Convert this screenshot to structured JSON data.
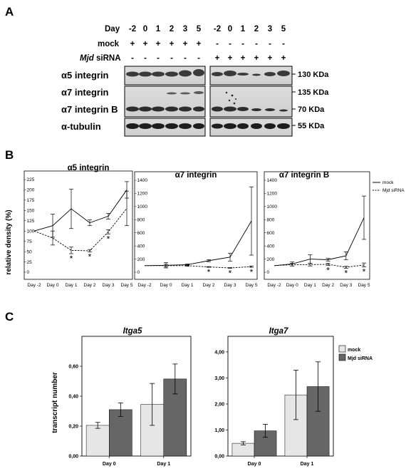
{
  "panels": {
    "a": "A",
    "b": "B",
    "c": "C"
  },
  "panel_a": {
    "day_label": "Day",
    "days": [
      "-2",
      "0",
      "1",
      "2",
      "3",
      "5",
      "-2",
      "0",
      "1",
      "2",
      "3",
      "5"
    ],
    "rows": [
      {
        "label": "mock",
        "marks": [
          "+",
          "+",
          "+",
          "+",
          "+",
          "+",
          "-",
          "-",
          "-",
          "-",
          "-",
          "-"
        ]
      },
      {
        "label_italic": "Mjd",
        "label_rest": " siRNA",
        "marks": [
          "-",
          "-",
          "-",
          "-",
          "-",
          "-",
          "+",
          "+",
          "+",
          "+",
          "+",
          "+"
        ]
      }
    ],
    "blots": [
      {
        "label": "α5 integrin",
        "kda": [
          "130 KDa"
        ]
      },
      {
        "label": "α7 integrin",
        "kda": [
          "135 KDa"
        ]
      },
      {
        "label": "α7 integrin B",
        "kda": [
          "70 KDa"
        ]
      },
      {
        "label": "α-tubulin",
        "kda": [
          "55 KDa"
        ]
      }
    ]
  },
  "panel_b": {
    "ylabel": "relative density (%)",
    "legend": [
      "mock",
      "Mjd siRNA"
    ],
    "charts": [
      {
        "title": "α5 integrin"
      },
      {
        "title": "α7 integrin"
      },
      {
        "title": "α7 integrin B"
      }
    ]
  },
  "panel_c": {
    "ylabel": "transcript number",
    "legend": [
      "mock",
      "Mjd siRNA"
    ],
    "colors": {
      "mock": "#e6e6e6",
      "siRNA": "#666666"
    },
    "charts": [
      {
        "title": "Itga5"
      },
      {
        "title": "Itga7"
      }
    ]
  },
  "chart_data": [
    {
      "type": "line",
      "title": "α5 integrin",
      "ylabel": "relative density (%)",
      "categories": [
        "Day -2",
        "Day 0",
        "Day 1",
        "Day 2",
        "Day 3",
        "Day 5"
      ],
      "ylim": [
        0,
        225
      ],
      "yticks": [
        0,
        25,
        50,
        75,
        100,
        125,
        150,
        175,
        200,
        225
      ],
      "series": [
        {
          "name": "mock",
          "values": [
            100,
            113,
            154,
            120,
            136,
            200
          ],
          "errors": [
            0,
            28,
            48,
            7,
            7,
            20
          ]
        },
        {
          "name": "Mjd siRNA",
          "values": [
            100,
            83,
            53,
            52,
            98,
            155
          ],
          "errors": [
            0,
            17,
            8,
            3,
            5,
            42
          ]
        }
      ],
      "significance": [
        {
          "category": "Day 1",
          "label": "*"
        },
        {
          "category": "Day 2",
          "label": "*"
        },
        {
          "category": "Day 3",
          "label": "*"
        }
      ]
    },
    {
      "type": "line",
      "title": "α7 integrin",
      "categories": [
        "Day -2",
        "Day 0",
        "Day 1",
        "Day 2",
        "Day 3",
        "Day 5"
      ],
      "ylim": [
        0,
        1400
      ],
      "yticks": [
        0,
        200,
        400,
        600,
        800,
        1000,
        1200,
        1400
      ],
      "series": [
        {
          "name": "mock",
          "values": [
            100,
            105,
            115,
            175,
            230,
            780
          ],
          "errors": [
            0,
            40,
            10,
            15,
            60,
            520
          ]
        },
        {
          "name": "Mjd siRNA",
          "values": [
            100,
            100,
            100,
            80,
            65,
            85
          ],
          "errors": [
            0,
            20,
            10,
            5,
            5,
            10
          ]
        }
      ],
      "significance": [
        {
          "category": "Day 2",
          "label": "*"
        },
        {
          "category": "Day 3",
          "label": "*"
        },
        {
          "category": "Day 5",
          "label": "*"
        }
      ]
    },
    {
      "type": "line",
      "title": "α7 integrin B",
      "categories": [
        "Day -2",
        "Day 0",
        "Day 1",
        "Day 2",
        "Day 3",
        "Day 5"
      ],
      "ylim": [
        0,
        1400
      ],
      "yticks": [
        0,
        200,
        400,
        600,
        800,
        1000,
        1200,
        1400
      ],
      "series": [
        {
          "name": "mock",
          "values": [
            100,
            125,
            200,
            190,
            250,
            830
          ],
          "errors": [
            0,
            30,
            65,
            20,
            60,
            330
          ]
        },
        {
          "name": "Mjd siRNA",
          "values": [
            100,
            115,
            115,
            120,
            75,
            110
          ],
          "errors": [
            0,
            20,
            20,
            15,
            15,
            30
          ]
        }
      ],
      "significance": [
        {
          "category": "Day 2",
          "label": "*"
        },
        {
          "category": "Day 3",
          "label": "*"
        },
        {
          "category": "Day 5",
          "label": "*"
        }
      ]
    },
    {
      "type": "bar",
      "title": "Itga5",
      "ylabel": "transcript number",
      "categories": [
        "Day 0",
        "Day 1"
      ],
      "ylim": [
        0,
        0.8
      ],
      "yticks": [
        "0,00",
        "0,20",
        "0,40",
        "0,60"
      ],
      "ytick_values": [
        0,
        0.2,
        0.4,
        0.6
      ],
      "series": [
        {
          "name": "mock",
          "values": [
            0.205,
            0.345
          ],
          "errors": [
            0.02,
            0.14
          ]
        },
        {
          "name": "Mjd siRNA",
          "values": [
            0.31,
            0.515
          ],
          "errors": [
            0.045,
            0.1
          ]
        }
      ]
    },
    {
      "type": "bar",
      "title": "Itga7",
      "categories": [
        "Day 0",
        "Day 1"
      ],
      "ylim": [
        0,
        4.6
      ],
      "yticks": [
        "0,00",
        "1,00",
        "2,00",
        "3,00",
        "4,00"
      ],
      "ytick_values": [
        0,
        1,
        2,
        3,
        4
      ],
      "series": [
        {
          "name": "mock",
          "values": [
            0.49,
            2.35
          ],
          "errors": [
            0.06,
            0.95
          ]
        },
        {
          "name": "Mjd siRNA",
          "values": [
            0.97,
            2.67
          ],
          "errors": [
            0.25,
            0.95
          ]
        }
      ]
    }
  ]
}
